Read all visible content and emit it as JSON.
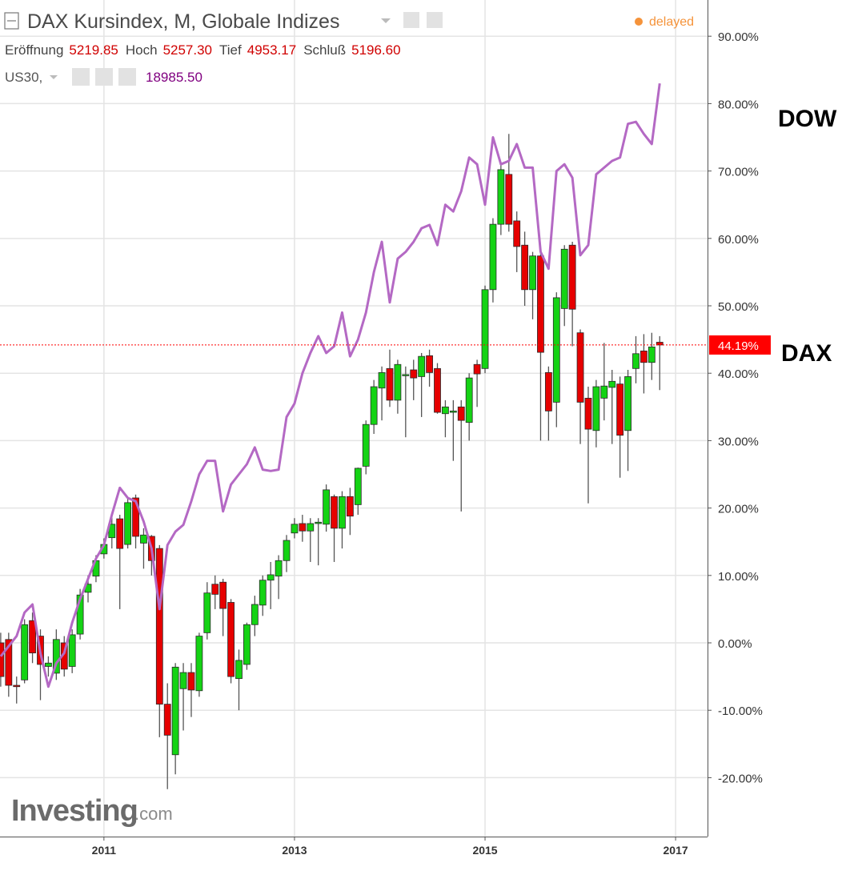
{
  "chart_data": {
    "type": "candlestick",
    "title": "DAX Kursindex, M, Globale Indizes",
    "status": "delayed",
    "legend": {
      "items": [
        {
          "label": "Eröffnung",
          "value": "5219.85"
        },
        {
          "label": "Hoch",
          "value": "5257.30"
        },
        {
          "label": "Tief",
          "value": "4953.17"
        },
        {
          "label": "Schluß",
          "value": "5196.60"
        }
      ]
    },
    "categories": [
      null,
      null,
      null,
      null,
      null,
      null,
      null,
      null,
      null,
      null,
      null,
      null,
      null,
      "2011",
      null,
      null,
      null,
      null,
      null,
      null,
      null,
      null,
      null,
      null,
      null,
      null,
      null,
      null,
      null,
      null,
      null,
      null,
      null,
      null,
      null,
      null,
      null,
      "2013",
      null,
      null,
      null,
      null,
      null,
      null,
      null,
      null,
      null,
      null,
      null,
      null,
      null,
      null,
      null,
      null,
      null,
      null,
      null,
      null,
      null,
      null,
      null,
      "2015",
      null,
      null,
      null,
      null,
      null,
      null,
      null,
      null,
      null,
      null,
      null,
      null,
      null,
      null,
      null,
      null,
      null,
      null,
      null,
      null,
      null,
      null,
      null,
      "2017"
    ],
    "series": [
      {
        "name": "DAX",
        "type": "candlestick",
        "up_color": "#14d314",
        "down_color": "#e60000",
        "open": [
          0,
          0.5,
          -6.3,
          -5.5,
          3.3,
          1,
          -3.5,
          -4.5,
          0,
          -3.5,
          1.3,
          7.5,
          9.9,
          13.2,
          15.6,
          18.4,
          14.6,
          21.5,
          14.8,
          15.8,
          14,
          -9.1,
          -16.6,
          -6.8,
          -4.4,
          -7.1,
          1.5,
          8.7,
          9,
          6,
          -5.3,
          -3.2,
          2.7,
          5.6,
          9.3,
          9.9,
          12.2,
          16.3,
          17.7,
          16.6,
          17.7,
          17.6,
          21.7,
          17,
          21.7,
          20.5,
          26.2,
          32.4,
          37.8,
          40.7,
          36,
          39.7,
          40.5,
          39.5,
          42.6,
          40.7,
          34,
          34.2,
          35,
          32.7,
          41.3,
          40.7,
          52.4,
          62.1,
          69.5,
          62.6,
          59,
          52.4,
          57.4,
          40.1,
          35.7,
          49.6,
          59,
          46,
          36.3,
          31.5,
          36.3,
          37.9,
          38.4,
          31.5,
          40.7,
          43.3,
          41.6,
          44.6,
          null,
          null
        ],
        "high": [
          1.5,
          1.5,
          -5,
          3.5,
          4.5,
          2,
          -2,
          2,
          1,
          2,
          8,
          10,
          13,
          15.5,
          19,
          19,
          21.5,
          22,
          17,
          16,
          14.5,
          -6,
          -3,
          -3,
          -3,
          1.5,
          9,
          10,
          9.5,
          6.5,
          -1,
          3,
          7,
          10,
          12,
          13,
          16,
          18.5,
          19,
          18.5,
          18.5,
          23.5,
          22,
          22.5,
          23,
          26,
          33,
          39,
          41,
          43.5,
          42,
          41,
          42,
          43,
          43.5,
          41.5,
          36,
          36,
          36,
          40,
          42,
          53,
          63,
          71,
          75.5,
          64,
          61,
          58,
          58,
          41,
          52,
          59,
          59.5,
          46.5,
          38,
          39,
          44.5,
          40.5,
          39.5,
          40.5,
          45.5,
          45.8,
          46,
          45.5,
          null,
          null
        ],
        "low": [
          -6.5,
          -8,
          -9,
          -6,
          -3,
          -8.5,
          -5,
          -5.5,
          -5,
          -4.5,
          0.5,
          6,
          9,
          12.5,
          14,
          5,
          14,
          14,
          11,
          10,
          -14,
          -21.7,
          -19.5,
          -13,
          -11,
          -8,
          0.5,
          5,
          1,
          -6,
          -10,
          -4,
          1,
          4,
          5,
          6.5,
          10.5,
          15.5,
          15,
          12,
          11.5,
          16.5,
          12,
          14,
          16,
          19,
          25,
          31,
          33,
          35,
          34,
          30.5,
          36,
          33.5,
          38,
          34,
          30.5,
          27,
          19.5,
          30,
          35,
          40,
          50.5,
          60.5,
          61,
          55,
          50,
          48,
          30,
          30,
          32,
          47,
          44,
          29.5,
          20.7,
          29,
          33,
          29.5,
          24.5,
          25.5,
          38.5,
          37,
          39,
          37.5,
          null,
          null
        ],
        "close": [
          -5,
          -6.3,
          -6.5,
          2.7,
          -1.5,
          -3.2,
          -3,
          0.5,
          -3.9,
          1.2,
          7.1,
          8.7,
          12.2,
          14.6,
          17.6,
          14,
          20.8,
          15.8,
          16,
          12.2,
          -9.1,
          -13.7,
          -3.6,
          -4.4,
          -7,
          1,
          7.4,
          7.2,
          5.1,
          -5,
          -2.6,
          2.7,
          5.7,
          9.3,
          10.1,
          12.2,
          15.2,
          17.6,
          16.6,
          17.7,
          17.9,
          22.7,
          17,
          21.7,
          18.8,
          25.9,
          32.4,
          38,
          40.1,
          36,
          41.3,
          39.8,
          39.3,
          42.5,
          40.1,
          34.2,
          35,
          34.4,
          33,
          39.3,
          39.9,
          52.4,
          62.1,
          70.2,
          62.1,
          58.8,
          52.4,
          57.4,
          43.1,
          34.4,
          51.2,
          58.4,
          49.5,
          35.7,
          31.7,
          38,
          38.1,
          38.8,
          30.8,
          39.5,
          42.9,
          41.6,
          43.9,
          44.19,
          null,
          null
        ]
      },
      {
        "name": "DOW",
        "symbol": "US30,",
        "type": "line",
        "color": "#b469c4",
        "value_label": "18985.50",
        "values": [
          -2,
          -0.5,
          1,
          4.5,
          5.7,
          -1.5,
          -6.5,
          -3,
          -1.5,
          3,
          6.5,
          9.5,
          12.5,
          14.5,
          19,
          23,
          21.5,
          21,
          18,
          14,
          5,
          14.5,
          16.5,
          17.5,
          21,
          25,
          27,
          27,
          19.5,
          23.5,
          25,
          26.5,
          29,
          25.7,
          25.5,
          25.7,
          33.5,
          35.5,
          40,
          43,
          45.5,
          43,
          44,
          49,
          42.5,
          45,
          49,
          55,
          59.5,
          50.5,
          57,
          58,
          59.5,
          61.5,
          62,
          59,
          65,
          64,
          67,
          72,
          71,
          65,
          75,
          71,
          71.5,
          74,
          70.5,
          70.5,
          58,
          55.5,
          70,
          71,
          69,
          57.5,
          59,
          69.5,
          70.5,
          71.5,
          72,
          77,
          77.3,
          75.5,
          74,
          83,
          null,
          null
        ]
      }
    ],
    "last": {
      "value": 44.19,
      "label": "44.19%",
      "color": "#ff0000"
    },
    "ylim": [
      -28.74,
      95.37
    ],
    "yticks": [
      {
        "value": -20,
        "label": "-20.00%"
      },
      {
        "value": -10,
        "label": "-10.00%"
      },
      {
        "value": 0,
        "label": "0.00%"
      },
      {
        "value": 10,
        "label": "10.00%"
      },
      {
        "value": 20,
        "label": "20.00%"
      },
      {
        "value": 30,
        "label": "30.00%"
      },
      {
        "value": 40,
        "label": "40.00%"
      },
      {
        "value": 50,
        "label": "50.00%"
      },
      {
        "value": 60,
        "label": "60.00%"
      },
      {
        "value": 70,
        "label": "70.00%"
      },
      {
        "value": 80,
        "label": "80.00%"
      },
      {
        "value": 90,
        "label": "90.00%"
      }
    ],
    "grid": true,
    "watermark": {
      "brand": "Investing",
      "suffix": ".com"
    }
  }
}
